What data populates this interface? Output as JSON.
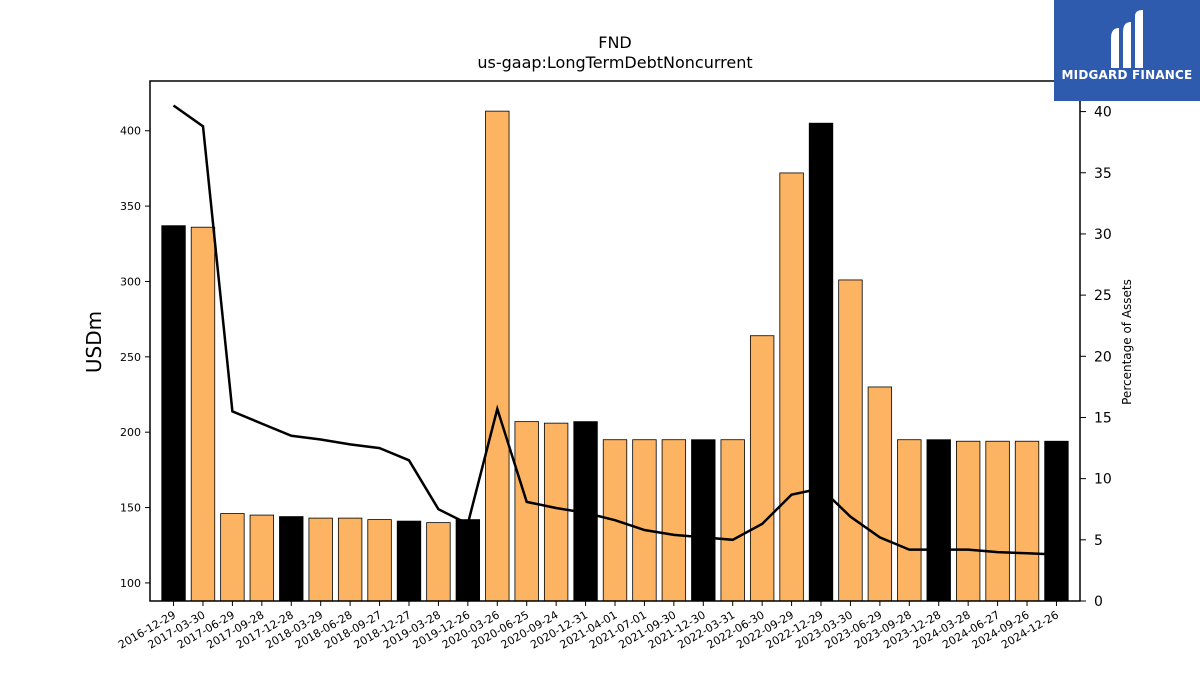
{
  "logo": {
    "text": "MIDGARD FINANCE",
    "background": "#2f5bae"
  },
  "chart_data": {
    "type": "bar",
    "title": "FND",
    "subtitle": "us-gaap:LongTermDebtNoncurrent",
    "ylabel": "USDm",
    "y2label": "Percentage of Assets",
    "ylim": [
      88,
      433
    ],
    "y2lim": [
      0,
      42.5
    ],
    "yticks": [
      100,
      150,
      200,
      250,
      300,
      350,
      400
    ],
    "y2ticks": [
      0,
      5,
      10,
      15,
      20,
      25,
      30,
      35,
      40
    ],
    "categories": [
      "2016-12-29",
      "2017-03-30",
      "2017-06-29",
      "2017-09-28",
      "2017-12-28",
      "2018-03-29",
      "2018-06-28",
      "2018-09-27",
      "2018-12-27",
      "2019-03-28",
      "2019-12-26",
      "2020-03-26",
      "2020-06-25",
      "2020-09-24",
      "2020-12-31",
      "2021-04-01",
      "2021-07-01",
      "2021-09-30",
      "2021-12-30",
      "2022-03-31",
      "2022-06-30",
      "2022-09-29",
      "2022-12-29",
      "2023-03-30",
      "2023-06-29",
      "2023-09-28",
      "2023-12-28",
      "2024-03-28",
      "2024-06-27",
      "2024-09-26",
      "2024-12-26"
    ],
    "series": [
      {
        "kind": "bar",
        "values": [
          337,
          336,
          146,
          145,
          144,
          143,
          143,
          142,
          141,
          140,
          142,
          413,
          207,
          206,
          207,
          195,
          195,
          195,
          195,
          195,
          264,
          372,
          405,
          301,
          230,
          195,
          195,
          194,
          194,
          194,
          194
        ]
      },
      {
        "kind": "line",
        "values": [
          40.5,
          38.8,
          15.5,
          14.5,
          13.5,
          13.2,
          12.8,
          12.5,
          11.5,
          7.5,
          6.3,
          15.7,
          8.1,
          7.6,
          7.2,
          6.6,
          5.8,
          5.4,
          5.2,
          5.0,
          6.3,
          8.7,
          9.2,
          6.9,
          5.2,
          4.2,
          4.2,
          4.2,
          4.0,
          3.9,
          3.8
        ]
      }
    ],
    "highlight_indices": [
      0,
      4,
      8,
      10,
      14,
      18,
      22,
      26,
      30
    ],
    "colors": {
      "bar": "#fdb462",
      "highlight": "#000000",
      "line": "#000000"
    }
  }
}
